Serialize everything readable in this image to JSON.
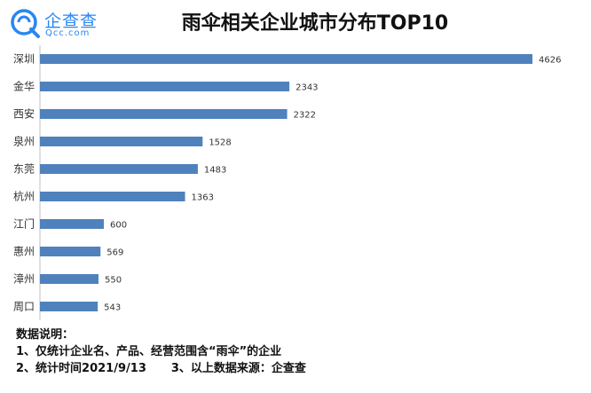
{
  "logo": {
    "name_cn": "企查查",
    "name_en": "Qcc.com"
  },
  "chart_data": {
    "type": "bar",
    "orientation": "horizontal",
    "title": "雨伞相关企业城市分布TOP10",
    "categories": [
      "深圳",
      "金华",
      "西安",
      "泉州",
      "东莞",
      "杭州",
      "江门",
      "惠州",
      "漳州",
      "周口"
    ],
    "values": [
      4626,
      2343,
      2322,
      1528,
      1483,
      1363,
      600,
      569,
      550,
      543
    ],
    "data_labels": [
      "4626",
      "2343",
      "2322",
      "1528",
      "1483",
      "1363",
      "600",
      "569",
      "550",
      "543"
    ],
    "xlim": [
      0,
      4626
    ],
    "grid": false,
    "bar_color": "#4f81bd"
  },
  "notes": {
    "heading": "数据说明：",
    "line1": "1、仅统计企业名、产品、经营范围含“雨伞”的企业",
    "line2a": "2、统计时间2021/9/13",
    "line2b": "3、以上数据来源：企查查"
  }
}
